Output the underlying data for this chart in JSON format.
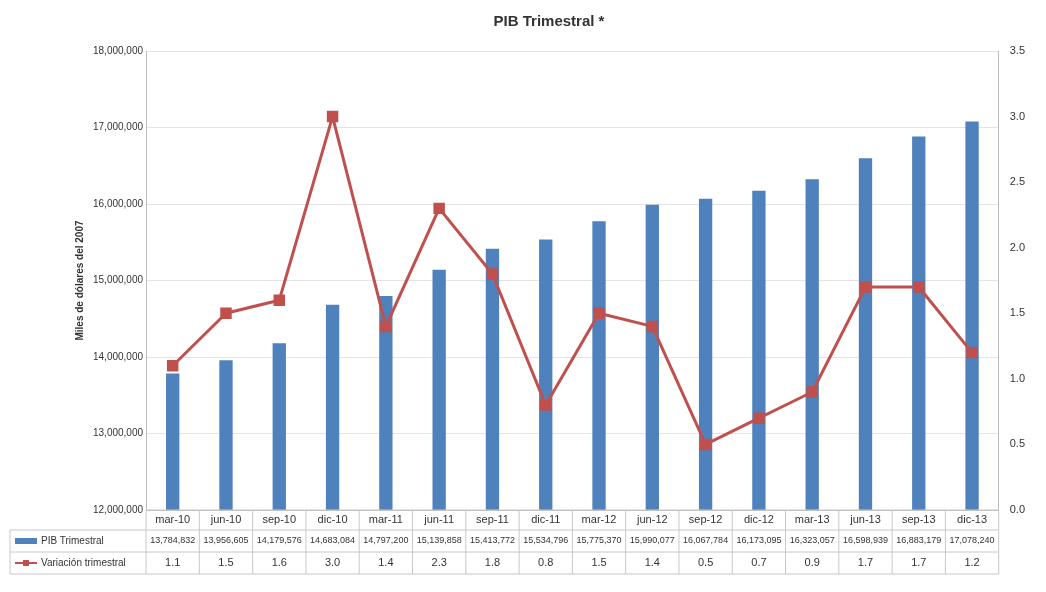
{
  "chart_data": {
    "type": "bar",
    "title": "PIB Trimestral *",
    "ylabel": "Miles de dólares del 2007",
    "categories": [
      "mar-10",
      "jun-10",
      "sep-10",
      "dic-10",
      "mar-11",
      "jun-11",
      "sep-11",
      "dic-11",
      "mar-12",
      "jun-12",
      "sep-12",
      "dic-12",
      "mar-13",
      "jun-13",
      "sep-13",
      "dic-13"
    ],
    "series": [
      {
        "name": "PIB Trimestral",
        "color": "#4f81bd",
        "values": [
          13784832,
          13956605,
          14179576,
          14683084,
          14797200,
          15139858,
          15413772,
          15534796,
          15775370,
          15990077,
          16067784,
          16173095,
          16323057,
          16598939,
          16883179,
          17078240
        ],
        "value_labels": [
          "13,784,832",
          "13,956,605",
          "14,179,576",
          "14,683,084",
          "14,797,200",
          "15,139,858",
          "15,413,772",
          "15,534,796",
          "15,775,370",
          "15,990,077",
          "16,067,784",
          "16,173,095",
          "16,323,057",
          "16,598,939",
          "16,883,179",
          "17,078,240"
        ]
      },
      {
        "name": "Variación trimestral",
        "type": "line",
        "axis": "y2",
        "color": "#c0504d",
        "values": [
          1.1,
          1.5,
          1.6,
          3.0,
          1.4,
          2.3,
          1.8,
          0.8,
          1.5,
          1.4,
          0.5,
          0.7,
          0.9,
          1.7,
          1.7,
          1.2
        ],
        "value_labels": [
          "1.1",
          "1.5",
          "1.6",
          "3.0",
          "1.4",
          "2.3",
          "1.8",
          "0.8",
          "1.5",
          "1.4",
          "0.5",
          "0.7",
          "0.9",
          "1.7",
          "1.7",
          "1.2"
        ]
      }
    ],
    "ylim": [
      12000000,
      18000000
    ],
    "yticks": [
      {
        "value": 12000000,
        "label": "12,000,000"
      },
      {
        "value": 13000000,
        "label": "13,000,000"
      },
      {
        "value": 14000000,
        "label": "14,000,000"
      },
      {
        "value": 15000000,
        "label": "15,000,000"
      },
      {
        "value": 16000000,
        "label": "16,000,000"
      },
      {
        "value": 17000000,
        "label": "17,000,000"
      },
      {
        "value": 18000000,
        "label": "18,000,000"
      }
    ],
    "y2lim": [
      0,
      3.5
    ],
    "y2ticks": [
      {
        "value": 0,
        "label": "0.0"
      },
      {
        "value": 0.5,
        "label": "0.5"
      },
      {
        "value": 1,
        "label": "1.0"
      },
      {
        "value": 1.5,
        "label": "1.5"
      },
      {
        "value": 2,
        "label": "2.0"
      },
      {
        "value": 2.5,
        "label": "2.5"
      },
      {
        "value": 3,
        "label": "3.0"
      },
      {
        "value": 3.5,
        "label": "3.5"
      }
    ],
    "grid": "y",
    "legend": "bottom",
    "marker": "square"
  }
}
